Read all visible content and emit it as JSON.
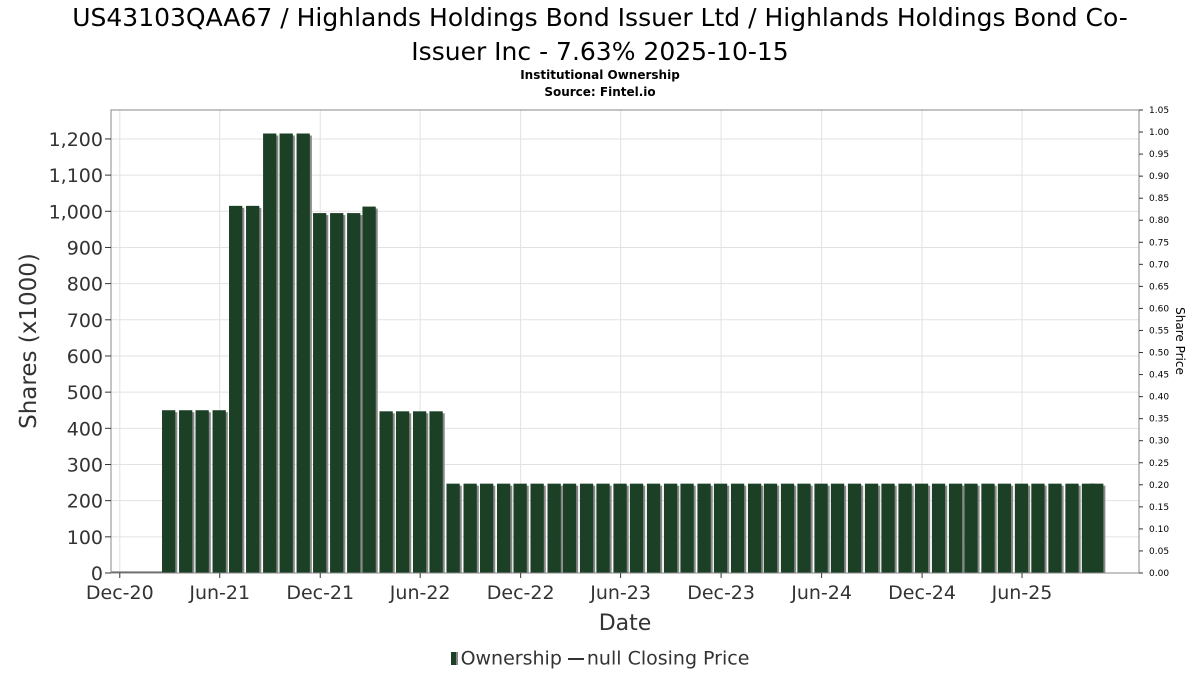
{
  "header": {
    "title_line1": "US43103QAA67 / Highlands Holdings Bond Issuer Ltd / Highlands Holdings Bond Co-",
    "title_line2": "Issuer Inc - 7.63% 2025-10-15",
    "subtitle": "Institutional Ownership",
    "source": "Source: Fintel.io"
  },
  "legend": {
    "ownership_label": "Ownership",
    "price_label": "null Closing Price"
  },
  "colors": {
    "bar": "#1c4026",
    "bar_shadow": "#888888",
    "grid": "#e2e2e2",
    "axis_text": "#333333"
  },
  "chart_data": {
    "type": "bar",
    "title": "US43103QAA67 / Highlands Holdings Bond Issuer Ltd / Highlands Holdings Bond Co-Issuer Inc - 7.63% 2025-10-15",
    "xlabel": "Date",
    "ylabel": "Shares (x1000)",
    "y2label": "Share Price",
    "xlim": [
      "2020-11-15",
      "2025-12-31"
    ],
    "ylim": [
      0,
      1280
    ],
    "y2lim": [
      0,
      1.05
    ],
    "grid": true,
    "legend_position": "bottom",
    "x_ticks": [
      {
        "date": "2020-12-01",
        "label": "Dec-20"
      },
      {
        "date": "2021-06-01",
        "label": "Jun-21"
      },
      {
        "date": "2021-12-01",
        "label": "Dec-21"
      },
      {
        "date": "2022-06-01",
        "label": "Jun-22"
      },
      {
        "date": "2022-12-01",
        "label": "Dec-22"
      },
      {
        "date": "2023-06-01",
        "label": "Jun-23"
      },
      {
        "date": "2023-12-01",
        "label": "Dec-23"
      },
      {
        "date": "2024-06-01",
        "label": "Jun-24"
      },
      {
        "date": "2024-12-01",
        "label": "Dec-24"
      },
      {
        "date": "2025-06-01",
        "label": "Jun-25"
      }
    ],
    "y_ticks": [
      0,
      100,
      200,
      300,
      400,
      500,
      600,
      700,
      800,
      900,
      1000,
      1100,
      1200
    ],
    "y_tick_labels": [
      "0",
      "100",
      "200",
      "300",
      "400",
      "500",
      "600",
      "700",
      "800",
      "900",
      "1,000",
      "1,100",
      "1,200"
    ],
    "y2_ticks": [
      0,
      0.05,
      0.1,
      0.15,
      0.2,
      0.25,
      0.3,
      0.35,
      0.4,
      0.45,
      0.5,
      0.55,
      0.6,
      0.65,
      0.7,
      0.75,
      0.8,
      0.85,
      0.9,
      0.95,
      1.0,
      1.05
    ],
    "y2_tick_labels": [
      "0.00",
      "0.05",
      "0.10",
      "0.15",
      "0.20",
      "0.25",
      "0.30",
      "0.35",
      "0.40",
      "0.45",
      "0.50",
      "0.55",
      "0.60",
      "0.65",
      "0.70",
      "0.75",
      "0.80",
      "0.85",
      "0.90",
      "0.95",
      "1.00",
      "1.05"
    ],
    "series": [
      {
        "name": "Ownership",
        "points": [
          {
            "x": "2021-02-28",
            "y": 450
          },
          {
            "x": "2021-03-31",
            "y": 450
          },
          {
            "x": "2021-04-30",
            "y": 450
          },
          {
            "x": "2021-05-31",
            "y": 450
          },
          {
            "x": "2021-06-30",
            "y": 1015
          },
          {
            "x": "2021-07-31",
            "y": 1015
          },
          {
            "x": "2021-08-31",
            "y": 1215
          },
          {
            "x": "2021-09-30",
            "y": 1215
          },
          {
            "x": "2021-10-31",
            "y": 1215
          },
          {
            "x": "2021-11-30",
            "y": 995
          },
          {
            "x": "2021-12-31",
            "y": 995
          },
          {
            "x": "2022-01-31",
            "y": 995
          },
          {
            "x": "2022-02-28",
            "y": 1013
          },
          {
            "x": "2022-03-31",
            "y": 447
          },
          {
            "x": "2022-04-30",
            "y": 447
          },
          {
            "x": "2022-05-31",
            "y": 447
          },
          {
            "x": "2022-06-30",
            "y": 447
          },
          {
            "x": "2022-07-31",
            "y": 247
          },
          {
            "x": "2022-08-31",
            "y": 247
          },
          {
            "x": "2022-09-30",
            "y": 247
          },
          {
            "x": "2022-10-31",
            "y": 247
          },
          {
            "x": "2022-11-30",
            "y": 247
          },
          {
            "x": "2022-12-31",
            "y": 247
          },
          {
            "x": "2023-01-31",
            "y": 247
          },
          {
            "x": "2023-02-28",
            "y": 247
          },
          {
            "x": "2023-03-31",
            "y": 247
          },
          {
            "x": "2023-04-30",
            "y": 247
          },
          {
            "x": "2023-05-31",
            "y": 247
          },
          {
            "x": "2023-06-30",
            "y": 247
          },
          {
            "x": "2023-07-31",
            "y": 247
          },
          {
            "x": "2023-08-31",
            "y": 247
          },
          {
            "x": "2023-09-30",
            "y": 247
          },
          {
            "x": "2023-10-31",
            "y": 247
          },
          {
            "x": "2023-11-30",
            "y": 247
          },
          {
            "x": "2023-12-31",
            "y": 247
          },
          {
            "x": "2024-01-31",
            "y": 247
          },
          {
            "x": "2024-02-29",
            "y": 247
          },
          {
            "x": "2024-03-31",
            "y": 247
          },
          {
            "x": "2024-04-30",
            "y": 247
          },
          {
            "x": "2024-05-31",
            "y": 247
          },
          {
            "x": "2024-06-30",
            "y": 247
          },
          {
            "x": "2024-07-31",
            "y": 247
          },
          {
            "x": "2024-08-31",
            "y": 247
          },
          {
            "x": "2024-09-30",
            "y": 247
          },
          {
            "x": "2024-10-31",
            "y": 247
          },
          {
            "x": "2024-11-30",
            "y": 247
          },
          {
            "x": "2024-12-31",
            "y": 247
          },
          {
            "x": "2025-01-31",
            "y": 247
          },
          {
            "x": "2025-02-28",
            "y": 247
          },
          {
            "x": "2025-03-31",
            "y": 247
          },
          {
            "x": "2025-04-30",
            "y": 247
          },
          {
            "x": "2025-05-31",
            "y": 247
          },
          {
            "x": "2025-06-30",
            "y": 247
          },
          {
            "x": "2025-07-31",
            "y": 247
          },
          {
            "x": "2025-08-31",
            "y": 247
          },
          {
            "x": "2025-09-30",
            "y": 247
          },
          {
            "x": "2025-10-15",
            "y": 247
          }
        ]
      }
    ]
  }
}
